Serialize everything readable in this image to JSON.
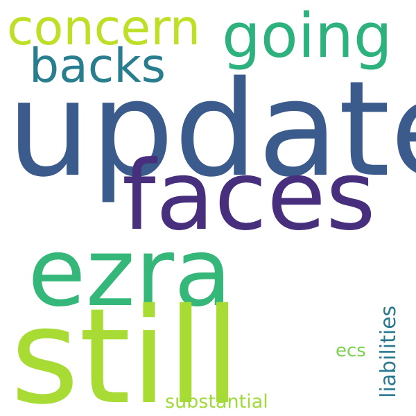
{
  "words": {
    "update": "update",
    "faces": "faces",
    "ezra": "ezra",
    "still": "still",
    "going": "going",
    "concern": "concern",
    "backs": "backs",
    "ecs": "ecs",
    "substantial": "substantial",
    "liabilities": "liabilities"
  },
  "colors": {
    "background": "#ffffff",
    "update": "#3a5b8c",
    "faces": "#472f7d",
    "ezra": "#35b779",
    "still": "#a8db34",
    "going": "#2db27d",
    "concern": "#bddf26",
    "backs": "#287d8e",
    "ecs": "#7ad151",
    "substantial": "#9fda3a",
    "liabilities": "#2a788e"
  },
  "orientation": {
    "liabilities": "vertical"
  }
}
